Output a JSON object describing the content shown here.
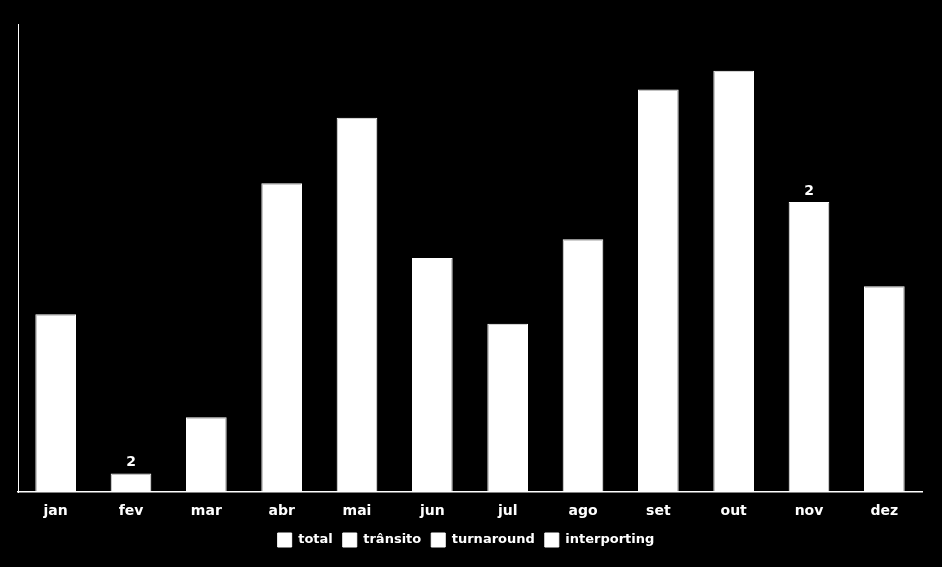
{
  "chart_data": {
    "type": "bar",
    "categories": [
      "jan",
      "fev",
      "mar",
      "abr",
      "mai",
      "jun",
      "jul",
      "ago",
      "set",
      "out",
      "nov",
      "dez"
    ],
    "series": [
      {
        "name": "total",
        "values": [
          19,
          2,
          8,
          33,
          40,
          25,
          18,
          27,
          43,
          45,
          31,
          22
        ]
      },
      {
        "name": "trânsito",
        "values": [
          null,
          null,
          null,
          null,
          null,
          null,
          null,
          null,
          null,
          null,
          null,
          null
        ]
      },
      {
        "name": "turnaround",
        "values": [
          null,
          null,
          null,
          null,
          null,
          null,
          null,
          null,
          null,
          null,
          null,
          null
        ]
      },
      {
        "name": "interporting",
        "values": [
          null,
          null,
          null,
          null,
          null,
          null,
          null,
          null,
          null,
          null,
          null,
          null
        ]
      }
    ],
    "color": "#ffffff",
    "annotations": [
      {
        "text": "2",
        "x": "fev",
        "y": 2
      },
      {
        "text": "2",
        "x": "nov",
        "y": 31
      }
    ],
    "ylim": [
      0,
      50
    ],
    "grid": false,
    "legend": "bottom",
    "tick_labels": "x"
  }
}
